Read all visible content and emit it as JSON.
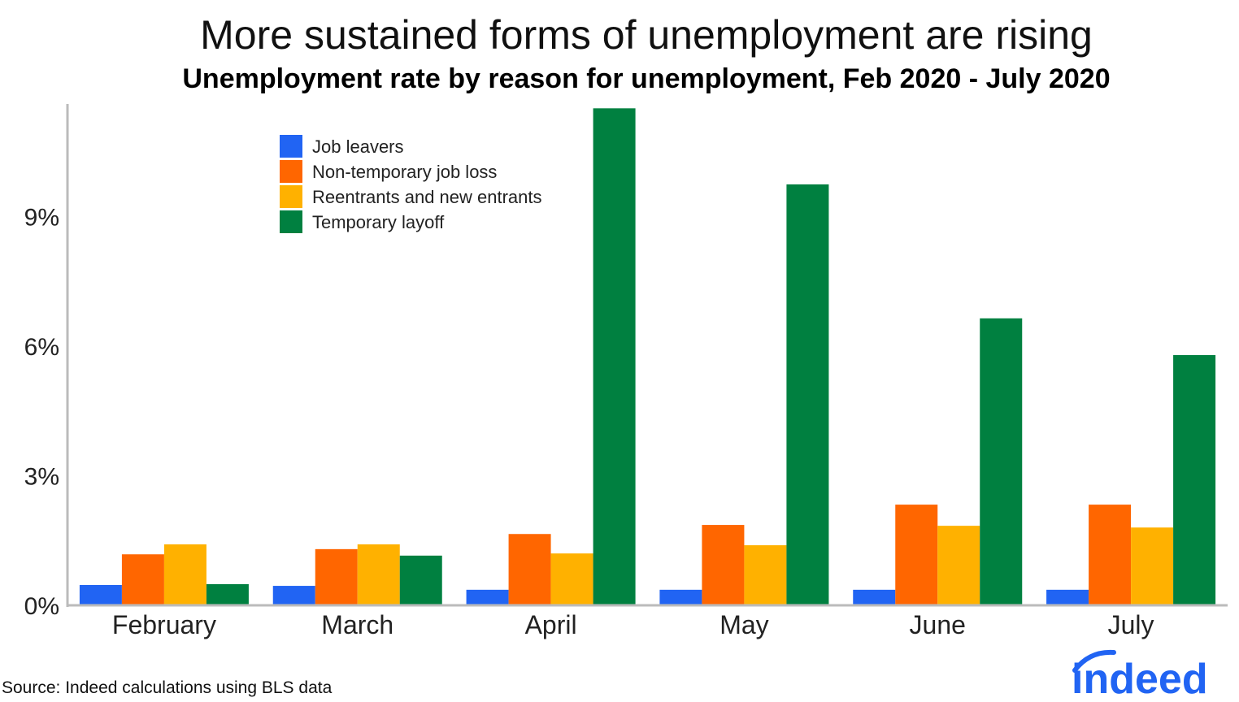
{
  "chart_data": {
    "type": "bar",
    "title": "More sustained forms of unemployment are rising",
    "subtitle": "Unemployment rate by reason for unemployment, Feb 2020 - July 2020",
    "xlabel": "",
    "ylabel": "",
    "categories": [
      "February",
      "March",
      "April",
      "May",
      "June",
      "July"
    ],
    "series": [
      {
        "name": "Job leavers",
        "color": "#2164F3",
        "values": [
          0.47,
          0.45,
          0.36,
          0.36,
          0.36,
          0.36
        ]
      },
      {
        "name": "Non-temporary job loss",
        "color": "#FF6600",
        "values": [
          1.18,
          1.3,
          1.65,
          1.86,
          2.33,
          2.33
        ]
      },
      {
        "name": "Reentrants and new entrants",
        "color": "#FFB100",
        "values": [
          1.41,
          1.41,
          1.2,
          1.39,
          1.84,
          1.8
        ]
      },
      {
        "name": "Temporary layoff",
        "color": "#008040",
        "values": [
          0.49,
          1.15,
          11.5,
          9.74,
          6.64,
          5.79
        ]
      }
    ],
    "yticks": [
      0,
      3,
      6,
      9
    ],
    "ytick_labels": [
      "0%",
      "3%",
      "6%",
      "9%"
    ],
    "ylim": [
      0,
      11.6
    ],
    "grid": false,
    "legend_placement": "top-left"
  },
  "source": "Source: Indeed calculations using BLS data",
  "logo": "indeed"
}
